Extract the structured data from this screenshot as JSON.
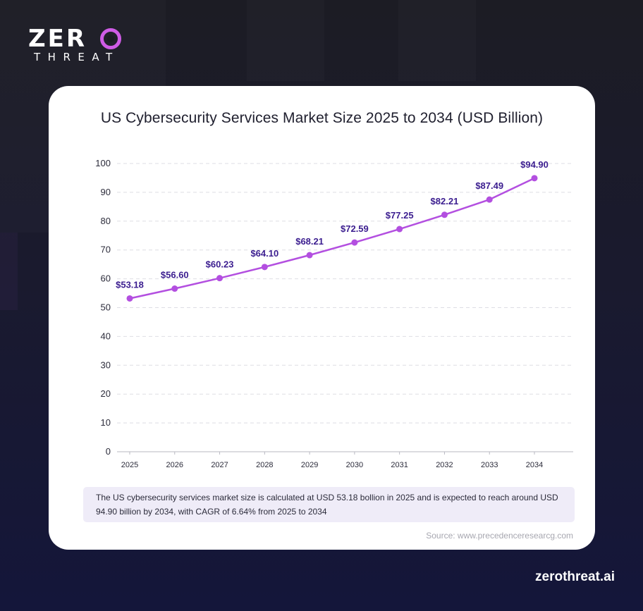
{
  "brand": {
    "logo_zer": "ZER",
    "logo_o": "O",
    "logo_threat": "THREAT",
    "domain": "zerothreat.ai",
    "accent_color": "#cf5ce6"
  },
  "chart_data": {
    "type": "line",
    "title": "US Cybersecurity Services Market Size 2025 to 2034 (USD Billion)",
    "xlabel": "",
    "ylabel": "",
    "categories": [
      "2025",
      "2026",
      "2027",
      "2028",
      "2029",
      "2030",
      "2031",
      "2032",
      "2033",
      "2034"
    ],
    "series": [
      {
        "name": "US Cybersecurity Services Market Size",
        "values": [
          53.18,
          56.6,
          60.23,
          64.1,
          68.21,
          72.59,
          77.25,
          82.21,
          87.49,
          94.9
        ],
        "data_labels": [
          "$53.18",
          "$56.60",
          "$60.23",
          "$64.10",
          "$68.21",
          "$72.59",
          "$77.25",
          "$82.21",
          "$87.49",
          "$94.90"
        ],
        "color": "#b34fe0",
        "label_color": "#3b1d8f"
      }
    ],
    "yticks": [
      "0",
      "10",
      "20",
      "30",
      "40",
      "50",
      "60",
      "70",
      "80",
      "90",
      "100"
    ],
    "ylim": [
      0,
      100
    ],
    "grid": true
  },
  "note": "The US cybersecurity services market size is calculated at USD 53.18 bollion in 2025 and is expected to reach around USD 94.90 billion by 2034, with CAGR of 6.64% from 2025 to 2034",
  "source": "Source: www.precedenceresearcg.com"
}
